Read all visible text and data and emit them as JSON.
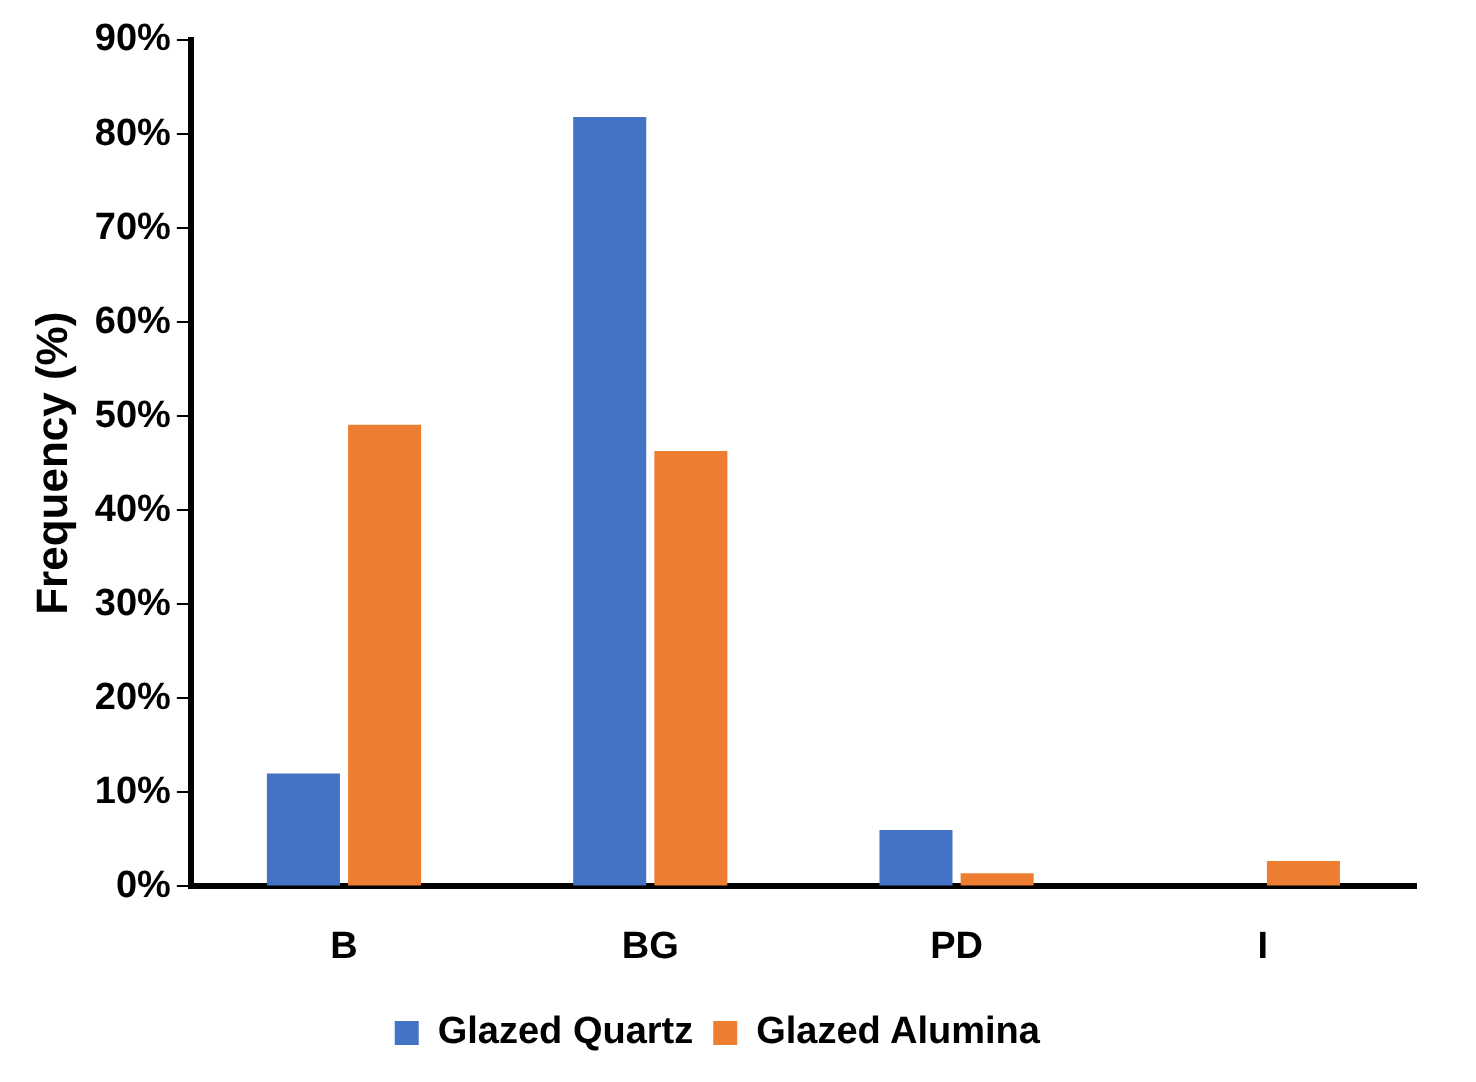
{
  "chart_data": {
    "type": "bar",
    "ylabel": "Frequency (%)",
    "categories": [
      "B",
      "BG",
      "PD",
      "I"
    ],
    "series": [
      {
        "name": "Glazed Quartz",
        "color": "#4472c4",
        "values": [
          12.0,
          81.8,
          6.0,
          0
        ]
      },
      {
        "name": "Glazed Alumina",
        "color": "#ed7d31",
        "values": [
          49.1,
          46.3,
          1.4,
          2.7
        ]
      }
    ],
    "ylim": [
      0,
      90
    ],
    "yticks": [
      {
        "value": 0,
        "label": "0%"
      },
      {
        "value": 10,
        "label": "10%"
      },
      {
        "value": 20,
        "label": "20%"
      },
      {
        "value": 30,
        "label": "30%"
      },
      {
        "value": 40,
        "label": "40%"
      },
      {
        "value": 50,
        "label": "50%"
      },
      {
        "value": 60,
        "label": "60%"
      },
      {
        "value": 70,
        "label": "70%"
      },
      {
        "value": 80,
        "label": "80%"
      },
      {
        "value": 90,
        "label": "90%"
      }
    ],
    "grid": false,
    "legend": "bottom"
  }
}
